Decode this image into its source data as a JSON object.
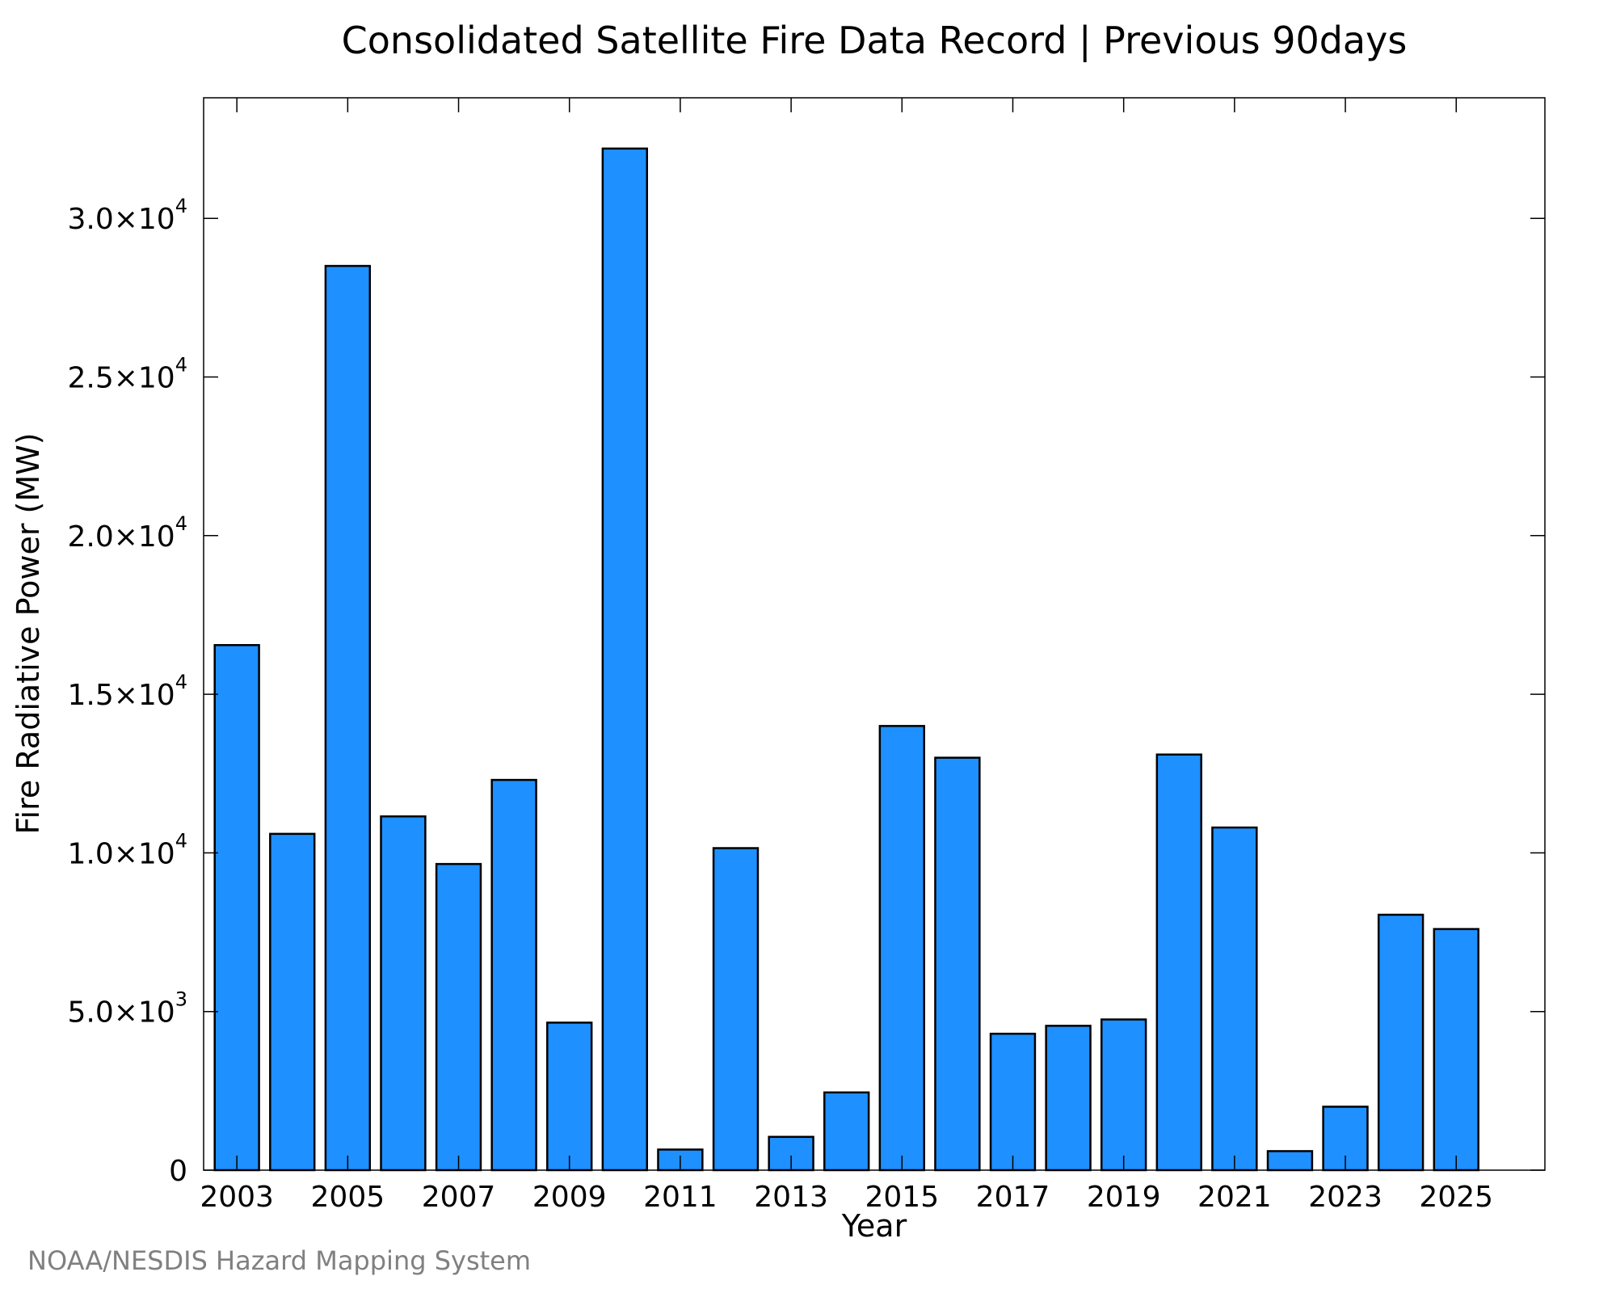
{
  "chart_data": {
    "type": "bar",
    "title": "Consolidated Satellite Fire Data Record | Previous 90days",
    "xlabel": "Year",
    "ylabel": "Fire Radiative Power (MW)",
    "categories": [
      "2003",
      "2004",
      "2005",
      "2006",
      "2007",
      "2008",
      "2009",
      "2010",
      "2011",
      "2012",
      "2013",
      "2014",
      "2015",
      "2016",
      "2017",
      "2018",
      "2019",
      "2020",
      "2021",
      "2022",
      "2023",
      "2024",
      "2025"
    ],
    "values": [
      16550,
      10600,
      28500,
      11150,
      9650,
      12300,
      4650,
      32200,
      650,
      10150,
      1050,
      2450,
      14000,
      13000,
      4300,
      4550,
      4750,
      13100,
      10800,
      600,
      2000,
      8050,
      7600
    ],
    "x_tick_labels": [
      "2003",
      "2005",
      "2007",
      "2009",
      "2011",
      "2013",
      "2015",
      "2017",
      "2019",
      "2021",
      "2023",
      "2025"
    ],
    "y_ticks": [
      {
        "value": 0,
        "mantissa": "0",
        "exponent": ""
      },
      {
        "value": 5000,
        "mantissa": "5.0×10",
        "exponent": "3"
      },
      {
        "value": 10000,
        "mantissa": "1.0×10",
        "exponent": "4"
      },
      {
        "value": 15000,
        "mantissa": "1.5×10",
        "exponent": "4"
      },
      {
        "value": 20000,
        "mantissa": "2.0×10",
        "exponent": "4"
      },
      {
        "value": 25000,
        "mantissa": "2.5×10",
        "exponent": "4"
      },
      {
        "value": 30000,
        "mantissa": "3.0×10",
        "exponent": "4"
      }
    ],
    "ylim": [
      0,
      33800
    ],
    "xlim": [
      2002.4,
      2026.6
    ],
    "grid": false,
    "bar_color": "#1e90ff",
    "edge_color": "#000000"
  },
  "footer": "NOAA/NESDIS Hazard Mapping System"
}
